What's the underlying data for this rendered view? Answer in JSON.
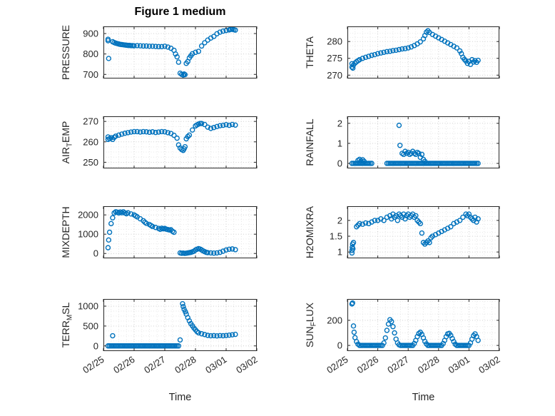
{
  "figure_title": "Figure 1 medium",
  "colors": {
    "accent": "#0072BD",
    "axis": "#262626",
    "grid_major": "#c9c9c9",
    "grid_minor": "#e5e5e5"
  },
  "axes": {
    "xlabel": "Time",
    "xlim": [
      0,
      5
    ],
    "xticks": [
      0,
      1,
      2,
      3,
      4,
      5
    ],
    "xticklabels": [
      "02/25",
      "02/26",
      "02/27",
      "02/28",
      "03/01",
      "03/02"
    ],
    "x_minor_step": 0.25
  },
  "chart_data": [
    {
      "type": "scatter",
      "name": "pressure",
      "ylabel": "PRESSURE",
      "ylabel_parts": [
        {
          "text": "PRESSURE"
        }
      ],
      "ylim": [
        680,
        935
      ],
      "yticks": [
        700,
        800,
        900
      ],
      "show_xticklabels": false,
      "x": [
        0.15,
        0.15,
        0.17,
        0.3,
        0.35,
        0.4,
        0.45,
        0.5,
        0.55,
        0.6,
        0.65,
        0.7,
        0.75,
        0.8,
        0.85,
        0.9,
        0.95,
        1.0,
        1.1,
        1.2,
        1.3,
        1.4,
        1.5,
        1.6,
        1.7,
        1.8,
        1.9,
        2.0,
        2.1,
        2.2,
        2.3,
        2.35,
        2.4,
        2.45,
        2.5,
        2.55,
        2.6,
        2.63,
        2.66,
        2.7,
        2.75,
        2.8,
        2.85,
        2.9,
        3.0,
        3.1,
        3.2,
        3.3,
        3.4,
        3.5,
        3.6,
        3.7,
        3.8,
        3.9,
        4.0,
        4.1,
        4.15,
        4.2,
        4.25,
        4.3
      ],
      "y": [
        865,
        872,
        778,
        860,
        856,
        853,
        851,
        849,
        847,
        846,
        845,
        844,
        843,
        842,
        842,
        841,
        841,
        840,
        841,
        840,
        839,
        839,
        838,
        838,
        837,
        836,
        836,
        838,
        834,
        828,
        818,
        800,
        786,
        760,
        706,
        700,
        697,
        702,
        699,
        754,
        763,
        781,
        791,
        801,
        808,
        813,
        839,
        855,
        868,
        878,
        886,
        899,
        907,
        912,
        915,
        918,
        920,
        921,
        919,
        917
      ]
    },
    {
      "type": "scatter",
      "name": "theta",
      "ylabel": "THETA",
      "ylabel_parts": [
        {
          "text": "THETA"
        }
      ],
      "ylim": [
        269,
        284.5
      ],
      "yticks": [
        270,
        275,
        280
      ],
      "show_xticklabels": false,
      "x": [
        0.15,
        0.15,
        0.18,
        0.2,
        0.25,
        0.3,
        0.35,
        0.4,
        0.5,
        0.6,
        0.7,
        0.8,
        0.9,
        1.0,
        1.1,
        1.2,
        1.3,
        1.4,
        1.5,
        1.6,
        1.7,
        1.8,
        1.9,
        2.0,
        2.1,
        2.2,
        2.3,
        2.4,
        2.5,
        2.55,
        2.6,
        2.65,
        2.7,
        2.8,
        2.9,
        3.0,
        3.1,
        3.2,
        3.3,
        3.4,
        3.5,
        3.6,
        3.7,
        3.75,
        3.8,
        3.85,
        3.9,
        3.95,
        4.0,
        4.05,
        4.1,
        4.15,
        4.2,
        4.25,
        4.3
      ],
      "y": [
        272.4,
        273.4,
        272.1,
        273.0,
        273.6,
        274.0,
        274.3,
        274.6,
        275.0,
        275.3,
        275.6,
        275.9,
        276.1,
        276.4,
        276.6,
        276.8,
        277.0,
        277.1,
        277.3,
        277.4,
        277.6,
        277.8,
        277.9,
        278.1,
        278.4,
        278.8,
        279.3,
        279.9,
        280.8,
        281.8,
        282.8,
        283.2,
        282.7,
        282.1,
        281.6,
        281.1,
        280.6,
        280.1,
        279.6,
        279.1,
        278.6,
        278.1,
        277.2,
        276.4,
        275.3,
        274.7,
        274.2,
        273.5,
        274.1,
        273.2,
        274.6,
        273.9,
        274.3,
        273.8,
        274.4
      ]
    },
    {
      "type": "scatter",
      "name": "air-temp",
      "ylabel": "AIR_TEMP",
      "ylabel_parts": [
        {
          "text": "AIR"
        },
        {
          "text": "T",
          "sub": true
        },
        {
          "text": "EMP"
        }
      ],
      "ylim": [
        247,
        272.5
      ],
      "yticks": [
        250,
        260,
        270
      ],
      "show_xticklabels": false,
      "x": [
        0.15,
        0.15,
        0.2,
        0.25,
        0.3,
        0.35,
        0.4,
        0.5,
        0.6,
        0.7,
        0.8,
        0.9,
        1.0,
        1.1,
        1.2,
        1.3,
        1.4,
        1.5,
        1.6,
        1.7,
        1.8,
        1.9,
        2.0,
        2.1,
        2.2,
        2.3,
        2.4,
        2.45,
        2.5,
        2.55,
        2.6,
        2.63,
        2.66,
        2.7,
        2.75,
        2.8,
        2.9,
        3.0,
        3.05,
        3.1,
        3.15,
        3.2,
        3.3,
        3.4,
        3.5,
        3.6,
        3.7,
        3.8,
        3.9,
        4.0,
        4.1,
        4.2,
        4.3
      ],
      "y": [
        261.2,
        262.4,
        261.6,
        262.0,
        261.2,
        262.2,
        262.8,
        263.3,
        263.8,
        264.2,
        264.5,
        264.8,
        265.0,
        265.0,
        264.8,
        265.0,
        264.9,
        264.7,
        264.9,
        264.6,
        264.8,
        265.0,
        264.9,
        264.5,
        264.1,
        263.2,
        261.8,
        258.5,
        257.0,
        256.2,
        255.8,
        256.6,
        257.6,
        261.5,
        262.6,
        263.3,
        265.8,
        267.8,
        268.3,
        268.7,
        269.0,
        269.0,
        268.5,
        267.2,
        266.6,
        267.0,
        267.5,
        267.9,
        268.1,
        268.4,
        268.1,
        268.5,
        268.2
      ]
    },
    {
      "type": "scatter",
      "name": "rainfall",
      "ylabel": "RAINFALL",
      "ylabel_parts": [
        {
          "text": "RAINFALL"
        }
      ],
      "ylim": [
        -0.25,
        2.35
      ],
      "yticks": [
        0,
        1,
        2
      ],
      "show_xticklabels": false,
      "x": [
        0.15,
        0.2,
        0.25,
        0.3,
        0.35,
        0.4,
        0.45,
        0.5,
        0.55,
        0.6,
        0.65,
        0.7,
        0.75,
        0.8,
        0.35,
        0.4,
        0.45,
        0.5,
        0.55,
        1.7,
        1.73,
        1.8,
        1.85,
        1.9,
        1.95,
        2.0,
        2.05,
        2.1,
        2.15,
        2.2,
        2.25,
        2.3,
        2.35,
        2.4,
        2.45,
        2.5,
        2.55,
        1.3,
        1.35,
        1.4,
        1.45,
        1.5,
        1.55,
        1.6,
        1.65,
        1.7,
        1.75,
        1.8,
        1.85,
        1.9,
        1.95,
        2.0,
        2.05,
        2.1,
        2.15,
        2.2,
        2.25,
        2.3,
        2.35,
        2.4,
        2.45,
        2.5,
        2.55,
        2.6,
        2.65,
        2.7,
        2.75,
        2.8,
        2.85,
        2.9,
        2.95,
        3.0,
        3.05,
        3.1,
        3.15,
        3.2,
        3.25,
        3.3,
        3.35,
        3.4,
        3.45,
        3.5,
        3.55,
        3.6,
        3.65,
        3.7,
        3.75,
        3.8,
        3.85,
        3.9,
        3.95,
        4.0,
        4.05,
        4.1,
        4.15,
        4.2,
        4.25,
        4.3
      ],
      "y": [
        0,
        0,
        0,
        0,
        0,
        0,
        0,
        0,
        0,
        0,
        0,
        0,
        0,
        0,
        0.15,
        0.2,
        0.12,
        0.18,
        0.1,
        1.9,
        0.9,
        0.5,
        0.45,
        0.6,
        0.5,
        0.55,
        0.45,
        0.5,
        0.6,
        0.5,
        0.45,
        0.55,
        0.5,
        0.3,
        0.45,
        0.2,
        0.1,
        0,
        0,
        0,
        0,
        0,
        0,
        0,
        0,
        0,
        0,
        0,
        0,
        0,
        0,
        0,
        0,
        0,
        0,
        0,
        0,
        0,
        0,
        0,
        0,
        0,
        0,
        0,
        0,
        0,
        0,
        0,
        0,
        0,
        0,
        0,
        0,
        0,
        0,
        0,
        0,
        0,
        0,
        0,
        0,
        0,
        0,
        0,
        0,
        0,
        0,
        0,
        0,
        0,
        0,
        0,
        0,
        0,
        0,
        0,
        0,
        0
      ]
    },
    {
      "type": "scatter",
      "name": "mixdepth",
      "ylabel": "MIXDEPTH",
      "ylabel_parts": [
        {
          "text": "MIXDEPTH"
        }
      ],
      "ylim": [
        -250,
        2450
      ],
      "yticks": [
        0,
        1000,
        2000
      ],
      "show_xticklabels": false,
      "x": [
        0.15,
        0.17,
        0.2,
        0.25,
        0.3,
        0.35,
        0.4,
        0.45,
        0.5,
        0.55,
        0.6,
        0.65,
        0.7,
        0.75,
        0.8,
        0.9,
        1.0,
        1.05,
        1.1,
        1.2,
        1.3,
        1.35,
        1.4,
        1.5,
        1.55,
        1.6,
        1.7,
        1.8,
        1.85,
        1.9,
        1.95,
        2.0,
        2.05,
        2.1,
        2.15,
        2.2,
        2.25,
        2.3,
        2.5,
        2.55,
        2.6,
        2.65,
        2.7,
        2.75,
        2.8,
        2.85,
        2.9,
        2.95,
        3.0,
        3.05,
        3.1,
        3.15,
        3.2,
        3.25,
        3.3,
        3.35,
        3.4,
        3.5,
        3.6,
        3.7,
        3.8,
        3.9,
        4.0,
        4.1,
        4.2,
        4.3
      ],
      "y": [
        300,
        700,
        1100,
        1550,
        1850,
        2100,
        2160,
        2140,
        2100,
        2150,
        2110,
        2160,
        2100,
        2060,
        2110,
        2050,
        2000,
        1950,
        1900,
        1800,
        1700,
        1620,
        1560,
        1500,
        1450,
        1400,
        1350,
        1300,
        1250,
        1310,
        1280,
        1300,
        1260,
        1240,
        1220,
        1230,
        1150,
        1100,
        30,
        10,
        20,
        5,
        15,
        30,
        45,
        60,
        85,
        120,
        180,
        220,
        250,
        230,
        185,
        135,
        95,
        60,
        45,
        30,
        20,
        30,
        60,
        120,
        180,
        220,
        235,
        200
      ]
    },
    {
      "type": "scatter",
      "name": "h2omixra",
      "ylabel": "H2OMIXRA",
      "ylabel_parts": [
        {
          "text": "H2OMIXRA"
        }
      ],
      "ylim": [
        0.8,
        2.45
      ],
      "yticks": [
        1,
        1.5,
        2
      ],
      "show_xticklabels": false,
      "x": [
        0.15,
        0.15,
        0.16,
        0.17,
        0.18,
        0.2,
        0.3,
        0.35,
        0.4,
        0.5,
        0.6,
        0.7,
        0.8,
        0.9,
        1.0,
        1.1,
        1.2,
        1.3,
        1.4,
        1.45,
        1.5,
        1.55,
        1.6,
        1.65,
        1.7,
        1.75,
        1.8,
        1.85,
        1.9,
        1.95,
        2.0,
        2.05,
        2.1,
        2.15,
        2.2,
        2.25,
        2.3,
        2.35,
        2.4,
        2.45,
        2.5,
        2.55,
        2.6,
        2.65,
        2.7,
        2.75,
        2.8,
        2.9,
        3.0,
        3.1,
        3.2,
        3.3,
        3.4,
        3.5,
        3.6,
        3.7,
        3.8,
        3.9,
        3.95,
        4.0,
        4.05,
        4.1,
        4.15,
        4.2,
        4.25,
        4.3
      ],
      "y": [
        0.97,
        1.05,
        1.15,
        1.25,
        1.1,
        1.3,
        1.8,
        1.85,
        1.9,
        1.88,
        1.92,
        1.9,
        1.95,
        2.0,
        2.0,
        2.05,
        2.0,
        2.1,
        2.15,
        2.05,
        2.2,
        2.1,
        2.15,
        2.0,
        2.2,
        2.15,
        2.1,
        2.2,
        2.05,
        2.15,
        2.2,
        2.1,
        2.15,
        2.2,
        2.1,
        2.15,
        2.0,
        1.95,
        1.9,
        1.6,
        1.3,
        1.25,
        1.3,
        1.35,
        1.3,
        1.45,
        1.5,
        1.55,
        1.6,
        1.65,
        1.7,
        1.75,
        1.8,
        1.9,
        1.95,
        2.0,
        2.1,
        2.2,
        2.15,
        2.2,
        2.1,
        2.05,
        2.0,
        2.1,
        1.95,
        2.05
      ]
    },
    {
      "type": "scatter",
      "name": "terr-msl",
      "ylabel": "TERR_MSL",
      "ylabel_parts": [
        {
          "text": "TERR"
        },
        {
          "text": "M",
          "sub": true
        },
        {
          "text": "SL"
        }
      ],
      "ylim": [
        -130,
        1180
      ],
      "yticks": [
        0,
        500,
        1000
      ],
      "show_xticklabels": true,
      "x": [
        0.15,
        0.2,
        0.25,
        0.3,
        0.35,
        0.4,
        0.45,
        0.5,
        0.55,
        0.6,
        0.65,
        0.7,
        0.75,
        0.8,
        0.85,
        0.9,
        0.95,
        1.0,
        1.05,
        1.1,
        1.15,
        1.2,
        1.25,
        1.3,
        1.35,
        1.4,
        1.45,
        1.5,
        1.55,
        1.6,
        1.65,
        1.7,
        1.75,
        1.8,
        1.85,
        1.9,
        1.95,
        2.0,
        2.05,
        2.1,
        2.15,
        2.2,
        2.25,
        2.3,
        2.35,
        2.4,
        2.45,
        0.3,
        2.5,
        2.58,
        2.6,
        2.63,
        2.67,
        2.7,
        2.75,
        2.8,
        2.85,
        2.9,
        2.95,
        3.0,
        3.05,
        3.1,
        3.2,
        3.3,
        3.4,
        3.5,
        3.6,
        3.7,
        3.8,
        3.9,
        4.0,
        4.1,
        4.2,
        4.3
      ],
      "y": [
        0,
        0,
        0,
        0,
        0,
        0,
        0,
        0,
        0,
        0,
        0,
        0,
        0,
        0,
        0,
        0,
        0,
        0,
        0,
        0,
        0,
        0,
        0,
        0,
        0,
        0,
        0,
        0,
        0,
        0,
        0,
        0,
        0,
        0,
        0,
        0,
        0,
        0,
        0,
        0,
        0,
        0,
        0,
        0,
        0,
        0,
        0,
        255,
        150,
        1060,
        990,
        920,
        860,
        800,
        710,
        630,
        560,
        505,
        450,
        405,
        360,
        330,
        305,
        285,
        265,
        255,
        258,
        252,
        260,
        256,
        262,
        270,
        280,
        290
      ]
    },
    {
      "type": "scatter",
      "name": "sun-flux",
      "ylabel": "SUN_FLUX",
      "ylabel_parts": [
        {
          "text": "SUN"
        },
        {
          "text": "F",
          "sub": true
        },
        {
          "text": "LUX"
        }
      ],
      "ylim": [
        -45,
        370
      ],
      "yticks": [
        0,
        200
      ],
      "show_xticklabels": true,
      "x": [
        0.15,
        0.17,
        0.2,
        0.22,
        0.25,
        0.3,
        0.35,
        0.4,
        0.45,
        0.5,
        0.55,
        0.6,
        0.65,
        0.7,
        0.75,
        0.8,
        0.85,
        0.9,
        0.95,
        1.0,
        1.05,
        1.1,
        1.15,
        1.2,
        1.25,
        1.3,
        1.35,
        1.4,
        1.45,
        1.5,
        1.55,
        1.6,
        1.65,
        1.7,
        1.75,
        1.8,
        1.85,
        1.9,
        1.95,
        2.0,
        2.05,
        2.1,
        2.15,
        2.2,
        2.25,
        2.3,
        2.35,
        2.4,
        2.45,
        2.5,
        2.55,
        2.6,
        2.65,
        2.7,
        2.75,
        2.8,
        2.85,
        2.9,
        2.95,
        3.0,
        3.05,
        3.1,
        3.15,
        3.2,
        3.25,
        3.3,
        3.35,
        3.4,
        3.45,
        3.5,
        3.55,
        3.6,
        3.65,
        3.7,
        3.75,
        3.8,
        3.85,
        3.9,
        3.95,
        4.0,
        4.05,
        4.1,
        4.15,
        4.2,
        4.25,
        4.3
      ],
      "y": [
        330,
        338,
        155,
        105,
        62,
        30,
        10,
        0,
        0,
        0,
        0,
        0,
        0,
        0,
        0,
        0,
        0,
        0,
        0,
        0,
        0,
        0,
        0,
        20,
        60,
        120,
        170,
        205,
        190,
        150,
        100,
        50,
        20,
        5,
        0,
        0,
        0,
        0,
        0,
        0,
        0,
        0,
        0,
        15,
        40,
        70,
        95,
        105,
        88,
        60,
        32,
        12,
        0,
        0,
        0,
        0,
        0,
        0,
        0,
        0,
        0,
        0,
        15,
        40,
        70,
        92,
        96,
        80,
        55,
        30,
        10,
        0,
        0,
        0,
        0,
        0,
        0,
        0,
        0,
        0,
        20,
        50,
        78,
        92,
        70,
        40
      ]
    }
  ]
}
